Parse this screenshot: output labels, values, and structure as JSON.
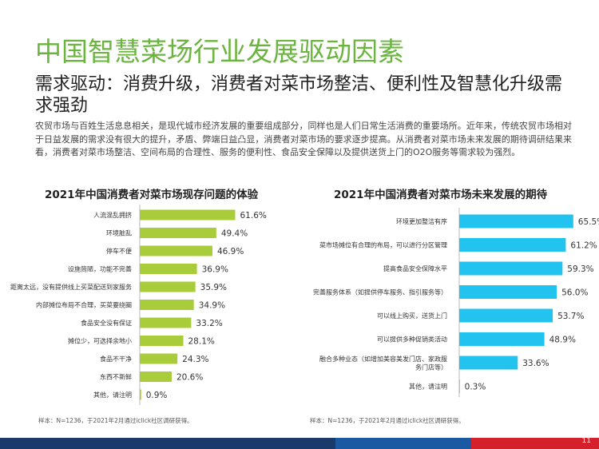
{
  "slide": {
    "title": "中国智慧菜场行业发展驱动因素",
    "subtitle": "需求驱动：消费升级，消费者对菜市场整洁、便利性及智慧化升级需求强劲",
    "body": "农贸市场与百姓生活息息相关，是现代城市经济发展的重要组成部分，同样也是人们日常生活消费的重要场所。近年来，传统农贸市场相对于日益发展的需求没有很大的提升，矛盾、弊端日益凸显，消费者对菜市场的要求逐步提高。从消费者对菜市场未来发展的期待调研结果来看，消费者对菜市场整洁、空间布局的合理性、服务的便利性、食品安全保障以及提供送货上门的O2O服务等需求较为强烈。",
    "page_number": "11"
  },
  "colors": {
    "title": "#6ab43f",
    "left_bar": "#a8cc3a",
    "right_bar": "#22c3ee"
  },
  "chart_data": [
    {
      "type": "bar",
      "orientation": "horizontal",
      "title": "2021年中国消费者对菜市场现存问题的体验",
      "categories": [
        "人流混乱拥挤",
        "环境脏乱",
        "停车不便",
        "设施简陋，功能不完善",
        "距离太远，没有提供线上买菜配送到家服务",
        "内部摊位布局不合理，买菜要绕圈",
        "食品安全没有保证",
        "摊位少，可选择余地小",
        "食品不干净",
        "东西不新鲜",
        "其他，请注明"
      ],
      "values": [
        61.6,
        49.4,
        46.9,
        36.9,
        35.9,
        34.9,
        33.2,
        28.1,
        24.3,
        20.6,
        0.9
      ],
      "value_suffix": "%",
      "note": "样本：N=1236，于2021年2月通过iclick社区调研获得。"
    },
    {
      "type": "bar",
      "orientation": "horizontal",
      "title": "2021年中国消费者对菜市场未来发展的期待",
      "categories": [
        "环境更加整洁有序",
        "菜市场摊位有合理的布局，可以进行分区管理",
        "提高食品安全保障水平",
        "完善服务体系（如提供停车服务、指引服务等）",
        "可以线上购买，送货上门",
        "可以提供多种促销类活动",
        "融合多种业态（如增加美容美发门店、家政服务门店等）",
        "其他，请注明"
      ],
      "values": [
        65.5,
        61.2,
        59.3,
        56.0,
        53.7,
        48.9,
        33.6,
        0.3
      ],
      "value_suffix": "%",
      "note": "样本：N=1236，于2021年2月通过iclick社区调研获得。"
    }
  ]
}
